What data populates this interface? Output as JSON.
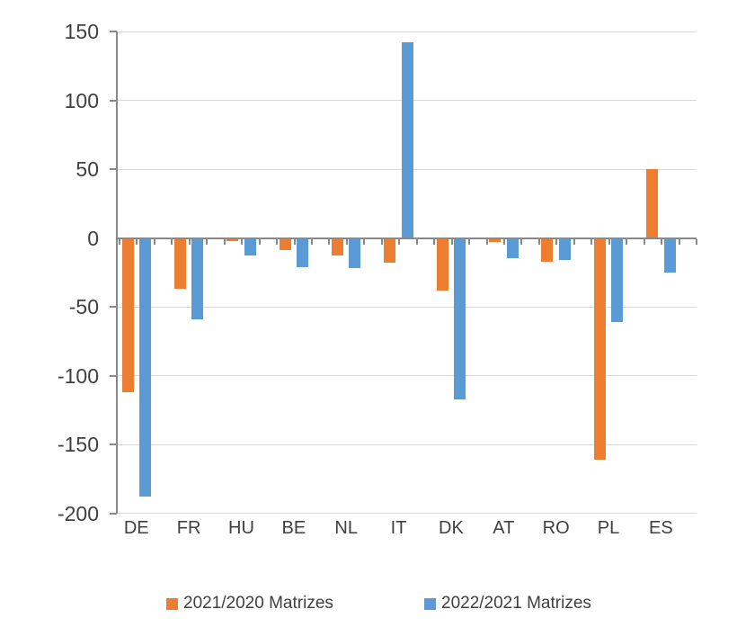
{
  "chart_data": {
    "type": "bar",
    "title": "",
    "xlabel": "",
    "ylabel": "",
    "categories": [
      "DE",
      "FR",
      "HU",
      "BE",
      "NL",
      "IT",
      "DK",
      "AT",
      "RO",
      "PL",
      "ES"
    ],
    "series": [
      {
        "name": "2021/2020 Matrizes",
        "color": "#ED7D31",
        "values": [
          -112,
          -37,
          -2,
          -9,
          -13,
          -18,
          -38,
          -3,
          -17,
          -161,
          50
        ]
      },
      {
        "name": "2022/2021 Matrizes",
        "color": "#5B9BD5",
        "values": [
          -188,
          -59,
          -13,
          -21,
          -22,
          142,
          -117,
          -15,
          -16,
          -61,
          -25
        ]
      }
    ],
    "ylim": [
      -200,
      150
    ],
    "yticks": [
      150,
      100,
      50,
      0,
      -50,
      -100,
      -150,
      -200
    ],
    "grid": true,
    "legend_position": "bottom",
    "colors": {
      "gridline": "#D9D9D9",
      "axis": "#898989",
      "text": "#404040"
    }
  }
}
